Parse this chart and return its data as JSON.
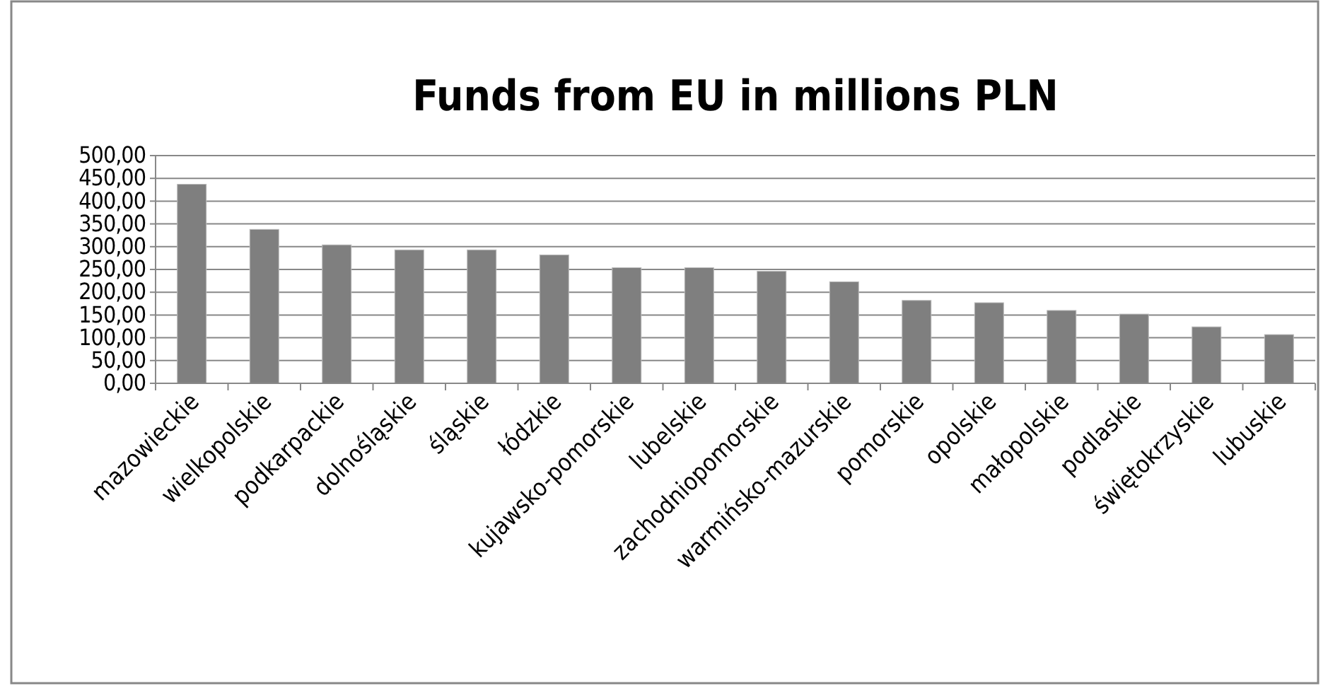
{
  "chart_data": {
    "type": "bar",
    "title": "Funds from EU in millions PLN",
    "categories": [
      "mazowieckie",
      "wielkopolskie",
      "podkarpackie",
      "dolnośląskie",
      "śląskie",
      "łódzkie",
      "kujawsko-pomorskie",
      "lubelskie",
      "zachodniopomorskie",
      "warmińsko-mazurskie",
      "pomorskie",
      "opolskie",
      "małopolskie",
      "podlaskie",
      "świętokrzyskie",
      "lubuskie"
    ],
    "values": [
      437,
      338,
      304,
      293,
      293,
      282,
      254,
      254,
      246,
      223,
      182,
      177,
      160,
      152,
      124,
      107
    ],
    "color": "#7f7f7f",
    "ylim": [
      0,
      500
    ],
    "yticks": [
      {
        "value": 0,
        "label": "0,00"
      },
      {
        "value": 50,
        "label": "50,00"
      },
      {
        "value": 100,
        "label": "100,00"
      },
      {
        "value": 150,
        "label": "150,00"
      },
      {
        "value": 200,
        "label": "200,00"
      },
      {
        "value": 250,
        "label": "250,00"
      },
      {
        "value": 300,
        "label": "300,00"
      },
      {
        "value": 350,
        "label": "350,00"
      },
      {
        "value": 400,
        "label": "400,00"
      },
      {
        "value": 450,
        "label": "450,00"
      },
      {
        "value": 500,
        "label": "500,00"
      }
    ],
    "grid": "y"
  }
}
